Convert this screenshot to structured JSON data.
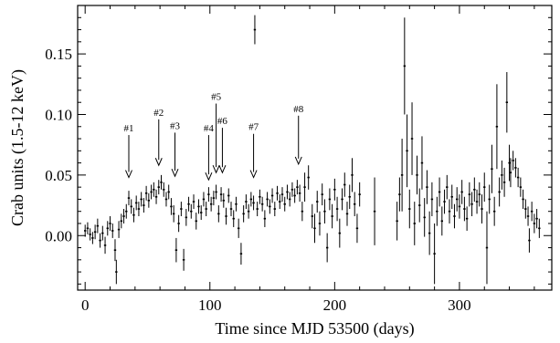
{
  "chart_data": {
    "type": "scatter",
    "title": "",
    "xlabel": "Time since MJD 53500 (days)",
    "ylabel": "Crab units (1.5-12 keV)",
    "xlim": [
      -6,
      374
    ],
    "ylim": [
      -0.045,
      0.19
    ],
    "x_ticks": [
      {
        "value": 0,
        "label": "0"
      },
      {
        "value": 100,
        "label": "100"
      },
      {
        "value": 200,
        "label": "200"
      },
      {
        "value": 300,
        "label": "300"
      }
    ],
    "y_ticks": [
      {
        "value": 0.0,
        "label": "0.00"
      },
      {
        "value": 0.05,
        "label": "0.05"
      },
      {
        "value": 0.1,
        "label": "0.10"
      },
      {
        "value": 0.15,
        "label": "0.15"
      }
    ],
    "grid": false,
    "legend": "none",
    "annotations": [
      {
        "label": "#1",
        "x": 35,
        "y_tip": 0.048,
        "y_tail": 0.083
      },
      {
        "label": "#2",
        "x": 59,
        "y_tip": 0.058,
        "y_tail": 0.096
      },
      {
        "label": "#3",
        "x": 72,
        "y_tip": 0.049,
        "y_tail": 0.085
      },
      {
        "label": "#4",
        "x": 99,
        "y_tip": 0.046,
        "y_tail": 0.083
      },
      {
        "label": "#5",
        "x": 105,
        "y_tip": 0.052,
        "y_tail": 0.109
      },
      {
        "label": "#6",
        "x": 110,
        "y_tip": 0.052,
        "y_tail": 0.089
      },
      {
        "label": "#7",
        "x": 135,
        "y_tip": 0.048,
        "y_tail": 0.084
      },
      {
        "label": "#8",
        "x": 171,
        "y_tip": 0.059,
        "y_tail": 0.099
      }
    ],
    "series": [
      {
        "points": [
          {
            "x": 0,
            "y": 0.004,
            "err": 0.005
          },
          {
            "x": 2,
            "y": 0.006,
            "err": 0.005
          },
          {
            "x": 4,
            "y": 0.001,
            "err": 0.005
          },
          {
            "x": 6,
            "y": -0.002,
            "err": 0.005
          },
          {
            "x": 8,
            "y": 0.003,
            "err": 0.006
          },
          {
            "x": 10,
            "y": 0.008,
            "err": 0.006
          },
          {
            "x": 12,
            "y": -0.004,
            "err": 0.006
          },
          {
            "x": 14,
            "y": 0.002,
            "err": 0.006
          },
          {
            "x": 16,
            "y": -0.008,
            "err": 0.007
          },
          {
            "x": 18,
            "y": 0.006,
            "err": 0.006
          },
          {
            "x": 20,
            "y": 0.01,
            "err": 0.006
          },
          {
            "x": 22,
            "y": 0.004,
            "err": 0.006
          },
          {
            "x": 24,
            "y": -0.012,
            "err": 0.009
          },
          {
            "x": 25,
            "y": -0.03,
            "err": 0.01
          },
          {
            "x": 27,
            "y": 0.005,
            "err": 0.007
          },
          {
            "x": 29,
            "y": 0.012,
            "err": 0.006
          },
          {
            "x": 31,
            "y": 0.016,
            "err": 0.006
          },
          {
            "x": 33,
            "y": 0.02,
            "err": 0.006
          },
          {
            "x": 35,
            "y": 0.031,
            "err": 0.006
          },
          {
            "x": 37,
            "y": 0.024,
            "err": 0.006
          },
          {
            "x": 39,
            "y": 0.017,
            "err": 0.006
          },
          {
            "x": 41,
            "y": 0.027,
            "err": 0.006
          },
          {
            "x": 43,
            "y": 0.022,
            "err": 0.006
          },
          {
            "x": 45,
            "y": 0.03,
            "err": 0.006
          },
          {
            "x": 47,
            "y": 0.025,
            "err": 0.006
          },
          {
            "x": 49,
            "y": 0.035,
            "err": 0.006
          },
          {
            "x": 51,
            "y": 0.029,
            "err": 0.006
          },
          {
            "x": 53,
            "y": 0.036,
            "err": 0.006
          },
          {
            "x": 55,
            "y": 0.038,
            "err": 0.006
          },
          {
            "x": 57,
            "y": 0.032,
            "err": 0.006
          },
          {
            "x": 59,
            "y": 0.04,
            "err": 0.006
          },
          {
            "x": 61,
            "y": 0.044,
            "err": 0.006
          },
          {
            "x": 63,
            "y": 0.038,
            "err": 0.006
          },
          {
            "x": 65,
            "y": 0.03,
            "err": 0.006
          },
          {
            "x": 67,
            "y": 0.036,
            "err": 0.006
          },
          {
            "x": 69,
            "y": 0.024,
            "err": 0.007
          },
          {
            "x": 71,
            "y": 0.018,
            "err": 0.007
          },
          {
            "x": 73,
            "y": -0.012,
            "err": 0.01
          },
          {
            "x": 75,
            "y": 0.01,
            "err": 0.007
          },
          {
            "x": 77,
            "y": 0.022,
            "err": 0.006
          },
          {
            "x": 79,
            "y": -0.02,
            "err": 0.009
          },
          {
            "x": 81,
            "y": 0.015,
            "err": 0.007
          },
          {
            "x": 83,
            "y": 0.026,
            "err": 0.006
          },
          {
            "x": 85,
            "y": 0.02,
            "err": 0.006
          },
          {
            "x": 87,
            "y": 0.028,
            "err": 0.006
          },
          {
            "x": 89,
            "y": 0.012,
            "err": 0.007
          },
          {
            "x": 91,
            "y": 0.024,
            "err": 0.006
          },
          {
            "x": 93,
            "y": 0.019,
            "err": 0.006
          },
          {
            "x": 95,
            "y": 0.03,
            "err": 0.006
          },
          {
            "x": 97,
            "y": 0.022,
            "err": 0.006
          },
          {
            "x": 99,
            "y": 0.034,
            "err": 0.006
          },
          {
            "x": 101,
            "y": 0.026,
            "err": 0.006
          },
          {
            "x": 103,
            "y": 0.031,
            "err": 0.006
          },
          {
            "x": 105,
            "y": 0.036,
            "err": 0.006
          },
          {
            "x": 107,
            "y": 0.018,
            "err": 0.007
          },
          {
            "x": 109,
            "y": 0.034,
            "err": 0.006
          },
          {
            "x": 111,
            "y": 0.029,
            "err": 0.006
          },
          {
            "x": 113,
            "y": 0.016,
            "err": 0.007
          },
          {
            "x": 115,
            "y": 0.033,
            "err": 0.006
          },
          {
            "x": 117,
            "y": 0.022,
            "err": 0.006
          },
          {
            "x": 119,
            "y": 0.014,
            "err": 0.007
          },
          {
            "x": 121,
            "y": 0.026,
            "err": 0.006
          },
          {
            "x": 123,
            "y": 0.006,
            "err": 0.008
          },
          {
            "x": 125,
            "y": -0.015,
            "err": 0.009
          },
          {
            "x": 127,
            "y": 0.018,
            "err": 0.007
          },
          {
            "x": 129,
            "y": 0.028,
            "err": 0.006
          },
          {
            "x": 131,
            "y": 0.02,
            "err": 0.006
          },
          {
            "x": 133,
            "y": 0.03,
            "err": 0.006
          },
          {
            "x": 135,
            "y": 0.027,
            "err": 0.006
          },
          {
            "x": 136,
            "y": 0.17,
            "err": 0.012
          },
          {
            "x": 138,
            "y": 0.022,
            "err": 0.006
          },
          {
            "x": 140,
            "y": 0.032,
            "err": 0.006
          },
          {
            "x": 142,
            "y": 0.026,
            "err": 0.006
          },
          {
            "x": 144,
            "y": 0.014,
            "err": 0.007
          },
          {
            "x": 146,
            "y": 0.03,
            "err": 0.006
          },
          {
            "x": 148,
            "y": 0.024,
            "err": 0.006
          },
          {
            "x": 150,
            "y": 0.033,
            "err": 0.006
          },
          {
            "x": 152,
            "y": 0.022,
            "err": 0.006
          },
          {
            "x": 154,
            "y": 0.035,
            "err": 0.006
          },
          {
            "x": 156,
            "y": 0.028,
            "err": 0.006
          },
          {
            "x": 158,
            "y": 0.034,
            "err": 0.006
          },
          {
            "x": 160,
            "y": 0.026,
            "err": 0.006
          },
          {
            "x": 162,
            "y": 0.036,
            "err": 0.006
          },
          {
            "x": 164,
            "y": 0.03,
            "err": 0.006
          },
          {
            "x": 166,
            "y": 0.038,
            "err": 0.006
          },
          {
            "x": 168,
            "y": 0.033,
            "err": 0.006
          },
          {
            "x": 170,
            "y": 0.04,
            "err": 0.006
          },
          {
            "x": 172,
            "y": 0.035,
            "err": 0.007
          },
          {
            "x": 174,
            "y": 0.02,
            "err": 0.008
          },
          {
            "x": 176,
            "y": 0.04,
            "err": 0.012
          },
          {
            "x": 179,
            "y": 0.048,
            "err": 0.01
          },
          {
            "x": 182,
            "y": 0.016,
            "err": 0.01
          },
          {
            "x": 184,
            "y": 0.006,
            "err": 0.012
          },
          {
            "x": 186,
            "y": 0.028,
            "err": 0.009
          },
          {
            "x": 188,
            "y": 0.01,
            "err": 0.01
          },
          {
            "x": 190,
            "y": 0.034,
            "err": 0.009
          },
          {
            "x": 192,
            "y": 0.02,
            "err": 0.01
          },
          {
            "x": 194,
            "y": -0.01,
            "err": 0.012
          },
          {
            "x": 196,
            "y": 0.03,
            "err": 0.009
          },
          {
            "x": 198,
            "y": 0.016,
            "err": 0.01
          },
          {
            "x": 200,
            "y": 0.038,
            "err": 0.009
          },
          {
            "x": 202,
            "y": 0.022,
            "err": 0.01
          },
          {
            "x": 204,
            "y": 0.002,
            "err": 0.012
          },
          {
            "x": 206,
            "y": 0.03,
            "err": 0.009
          },
          {
            "x": 208,
            "y": 0.042,
            "err": 0.01
          },
          {
            "x": 210,
            "y": 0.018,
            "err": 0.01
          },
          {
            "x": 212,
            "y": 0.032,
            "err": 0.01
          },
          {
            "x": 214,
            "y": 0.05,
            "err": 0.014
          },
          {
            "x": 216,
            "y": 0.026,
            "err": 0.01
          },
          {
            "x": 218,
            "y": 0.006,
            "err": 0.012
          },
          {
            "x": 220,
            "y": 0.034,
            "err": 0.01
          },
          {
            "x": 232,
            "y": 0.02,
            "err": 0.028
          },
          {
            "x": 250,
            "y": 0.012,
            "err": 0.016
          },
          {
            "x": 252,
            "y": 0.034,
            "err": 0.014
          },
          {
            "x": 254,
            "y": 0.05,
            "err": 0.03
          },
          {
            "x": 256,
            "y": 0.14,
            "err": 0.04
          },
          {
            "x": 258,
            "y": 0.07,
            "err": 0.03
          },
          {
            "x": 260,
            "y": 0.022,
            "err": 0.016
          },
          {
            "x": 262,
            "y": 0.08,
            "err": 0.03
          },
          {
            "x": 264,
            "y": 0.01,
            "err": 0.018
          },
          {
            "x": 266,
            "y": 0.05,
            "err": 0.016
          },
          {
            "x": 268,
            "y": 0.025,
            "err": 0.014
          },
          {
            "x": 270,
            "y": 0.06,
            "err": 0.022
          },
          {
            "x": 272,
            "y": 0.015,
            "err": 0.016
          },
          {
            "x": 274,
            "y": 0.04,
            "err": 0.014
          },
          {
            "x": 276,
            "y": 0.002,
            "err": 0.018
          },
          {
            "x": 278,
            "y": 0.03,
            "err": 0.014
          },
          {
            "x": 280,
            "y": -0.015,
            "err": 0.025
          },
          {
            "x": 282,
            "y": 0.02,
            "err": 0.012
          },
          {
            "x": 284,
            "y": 0.036,
            "err": 0.012
          },
          {
            "x": 286,
            "y": 0.012,
            "err": 0.012
          },
          {
            "x": 288,
            "y": 0.028,
            "err": 0.01
          },
          {
            "x": 290,
            "y": 0.04,
            "err": 0.01
          },
          {
            "x": 292,
            "y": 0.02,
            "err": 0.01
          },
          {
            "x": 294,
            "y": 0.032,
            "err": 0.01
          },
          {
            "x": 296,
            "y": 0.016,
            "err": 0.01
          },
          {
            "x": 298,
            "y": 0.03,
            "err": 0.01
          },
          {
            "x": 300,
            "y": 0.024,
            "err": 0.01
          },
          {
            "x": 302,
            "y": 0.036,
            "err": 0.01
          },
          {
            "x": 304,
            "y": 0.022,
            "err": 0.01
          },
          {
            "x": 306,
            "y": 0.014,
            "err": 0.01
          },
          {
            "x": 308,
            "y": 0.034,
            "err": 0.01
          },
          {
            "x": 310,
            "y": 0.026,
            "err": 0.01
          },
          {
            "x": 312,
            "y": 0.038,
            "err": 0.01
          },
          {
            "x": 314,
            "y": 0.028,
            "err": 0.01
          },
          {
            "x": 316,
            "y": 0.034,
            "err": 0.01
          },
          {
            "x": 318,
            "y": 0.022,
            "err": 0.012
          },
          {
            "x": 320,
            "y": 0.04,
            "err": 0.012
          },
          {
            "x": 322,
            "y": -0.01,
            "err": 0.03
          },
          {
            "x": 324,
            "y": 0.03,
            "err": 0.012
          },
          {
            "x": 326,
            "y": 0.055,
            "err": 0.02
          },
          {
            "x": 328,
            "y": 0.02,
            "err": 0.012
          },
          {
            "x": 330,
            "y": 0.09,
            "err": 0.035
          },
          {
            "x": 332,
            "y": 0.036,
            "err": 0.012
          },
          {
            "x": 334,
            "y": 0.05,
            "err": 0.012
          },
          {
            "x": 336,
            "y": 0.044,
            "err": 0.012
          },
          {
            "x": 338,
            "y": 0.11,
            "err": 0.025
          },
          {
            "x": 340,
            "y": 0.06,
            "err": 0.015
          },
          {
            "x": 341,
            "y": 0.052,
            "err": 0.012
          },
          {
            "x": 343,
            "y": 0.062,
            "err": 0.008
          },
          {
            "x": 345,
            "y": 0.056,
            "err": 0.008
          },
          {
            "x": 347,
            "y": 0.048,
            "err": 0.008
          },
          {
            "x": 349,
            "y": 0.04,
            "err": 0.008
          },
          {
            "x": 351,
            "y": 0.03,
            "err": 0.008
          },
          {
            "x": 353,
            "y": 0.022,
            "err": 0.008
          },
          {
            "x": 355,
            "y": 0.016,
            "err": 0.008
          },
          {
            "x": 356,
            "y": -0.004,
            "err": 0.01
          },
          {
            "x": 358,
            "y": 0.02,
            "err": 0.008
          },
          {
            "x": 360,
            "y": 0.01,
            "err": 0.008
          },
          {
            "x": 362,
            "y": 0.014,
            "err": 0.008
          },
          {
            "x": 364,
            "y": 0.006,
            "err": 0.008
          }
        ]
      }
    ]
  }
}
